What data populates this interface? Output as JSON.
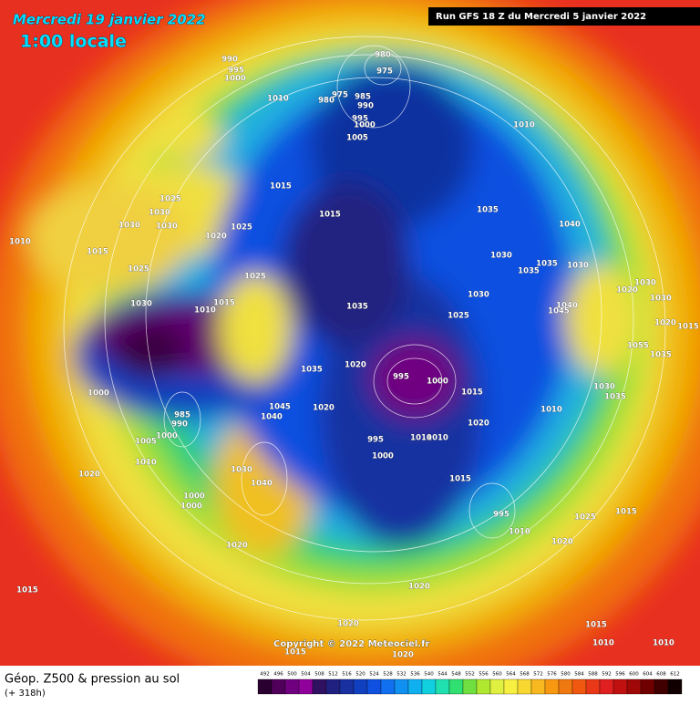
{
  "header": {
    "date": "Mercredi 19 janvier 2022",
    "time": "1:00 locale",
    "run": "Run GFS 18 Z du Mercredi 5 janvier 2022"
  },
  "footer": {
    "title": "Géop. Z500 & pression au sol",
    "lead": "(+ 318h)",
    "copyright": "Copyright © 2022 Meteociel.fr"
  },
  "scale": {
    "values": [
      492,
      496,
      500,
      504,
      508,
      512,
      516,
      520,
      524,
      528,
      532,
      536,
      540,
      544,
      548,
      552,
      556,
      560,
      564,
      568,
      572,
      576,
      580,
      584,
      588,
      592,
      596,
      600,
      604,
      608,
      612
    ],
    "colors": [
      "#2a0030",
      "#50005a",
      "#700080",
      "#90009a",
      "#301060",
      "#202080",
      "#1830a0",
      "#1040c0",
      "#1050e0",
      "#1070f0",
      "#1090f0",
      "#10b0f0",
      "#10d0e0",
      "#20e0b0",
      "#30e070",
      "#70e040",
      "#b0e830",
      "#e0f040",
      "#f8f040",
      "#f8d830",
      "#f8b820",
      "#f89810",
      "#f07810",
      "#f05810",
      "#e83818",
      "#e02020",
      "#c01010",
      "#a00808",
      "#700000",
      "#400000",
      "#100000"
    ]
  },
  "isobar_labels": [
    "990",
    "995",
    "1000",
    "980",
    "975",
    "975",
    "985",
    "990",
    "980",
    "995",
    "1000",
    "1010",
    "1005",
    "1010",
    "1015",
    "1015",
    "1025",
    "1030",
    "1030",
    "1030",
    "1025",
    "1020",
    "1010",
    "1015",
    "1025",
    "1025",
    "1030",
    "1015",
    "1010",
    "1035",
    "1040",
    "1030",
    "1035",
    "1035",
    "1030",
    "1030",
    "1035",
    "1025",
    "1040",
    "1045",
    "1020",
    "1030",
    "1030",
    "1020",
    "1015",
    "1055",
    "1035",
    "1035",
    "1020",
    "995",
    "1000",
    "1015",
    "1020",
    "1010",
    "1030",
    "1035",
    "1000",
    "985",
    "990",
    "1045",
    "1040",
    "1020",
    "1000",
    "1005",
    "1010",
    "995",
    "1000",
    "1010",
    "1010",
    "1015",
    "1020",
    "1030",
    "1040",
    "1000",
    "1000",
    "995",
    "1010",
    "1025",
    "1015",
    "1020",
    "1020",
    "1015",
    "1020",
    "1020",
    "1015",
    "1010",
    "1015",
    "1020",
    "1010"
  ]
}
